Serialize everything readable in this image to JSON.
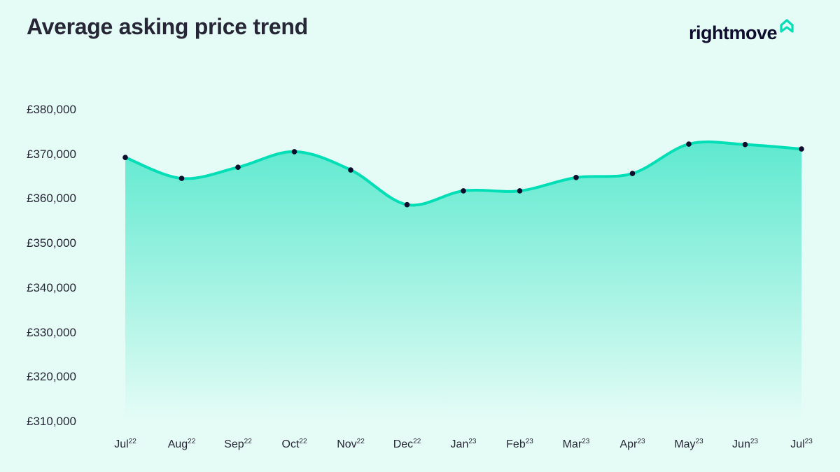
{
  "header": {
    "title": "Average asking price trend",
    "logo_text": "rightmove",
    "logo_icon": "house-icon"
  },
  "colors": {
    "background": "#e5fcf6",
    "line": "#00deb6",
    "fill_top": "#5ee9cf",
    "fill_bottom": "#e5fcf6",
    "marker": "#0e0d2e",
    "text": "#262637"
  },
  "y_axis": {
    "ticks": [
      "£380,000",
      "£370,000",
      "£360,000",
      "£350,000",
      "£340,000",
      "£330,000",
      "£320,000",
      "£310,000"
    ]
  },
  "x_axis": {
    "ticks": [
      {
        "month": "Jul",
        "year": "22"
      },
      {
        "month": "Aug",
        "year": "22"
      },
      {
        "month": "Sep",
        "year": "22"
      },
      {
        "month": "Oct",
        "year": "22"
      },
      {
        "month": "Nov",
        "year": "22"
      },
      {
        "month": "Dec",
        "year": "22"
      },
      {
        "month": "Jan",
        "year": "23"
      },
      {
        "month": "Feb",
        "year": "23"
      },
      {
        "month": "Mar",
        "year": "23"
      },
      {
        "month": "Apr",
        "year": "23"
      },
      {
        "month": "May",
        "year": "23"
      },
      {
        "month": "Jun",
        "year": "23"
      },
      {
        "month": "Jul",
        "year": "23"
      }
    ]
  },
  "chart_data": {
    "type": "area",
    "title": "Average asking price trend",
    "xlabel": "",
    "ylabel": "",
    "categories": [
      "Jul 22",
      "Aug 22",
      "Sep 22",
      "Oct 22",
      "Nov 22",
      "Dec 22",
      "Jan 23",
      "Feb 23",
      "Mar 23",
      "Apr 23",
      "May 23",
      "Jun 23",
      "Jul 23"
    ],
    "series": [
      {
        "name": "Average asking price",
        "values": [
          369300,
          364600,
          367100,
          370600,
          366500,
          358700,
          361800,
          361800,
          364800,
          365700,
          372300,
          372200,
          371200
        ]
      }
    ],
    "ylim": [
      310000,
      380000
    ],
    "y_ticks": [
      310000,
      320000,
      330000,
      340000,
      350000,
      360000,
      370000,
      380000
    ],
    "grid": false,
    "legend": "none",
    "smooth": true,
    "markers": true
  }
}
